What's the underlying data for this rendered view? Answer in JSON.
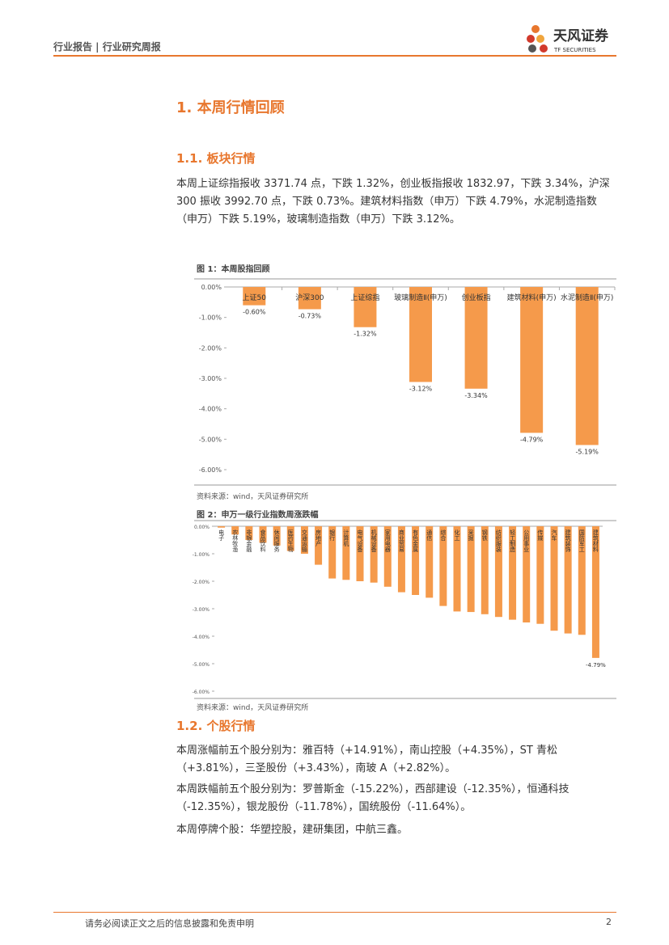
{
  "header": {
    "left": "行业报告 | 行业研究周报",
    "logo_cn": "天风证券",
    "logo_en": "TF SECURITIES"
  },
  "heading": "1. 本周行情回顾",
  "sub1": {
    "title": "1.1. 板块行情",
    "text": "本周上证综指报收 3371.74 点，下跌 1.32%，创业板指报收 1832.97，下跌 3.34%，沪深 300 振收 3992.70 点，下跌 0.73%。建筑材料指数（申万）下跌 4.79%，水泥制造指数（申万）下跌 5.19%，玻璃制造指数（申万）下跌 3.12%。"
  },
  "chart_data": [
    {
      "type": "bar",
      "title": "图 1：本周股指回顾",
      "source": "资料来源：wind，天风证券研究所",
      "color": "#f59a4b",
      "categories": [
        "上证50",
        "沪深300",
        "上证综指",
        "玻璃制造Ⅱ(申万)",
        "创业板指",
        "建筑材料(申万)",
        "水泥制造Ⅱ(申万)"
      ],
      "values": [
        -0.6,
        -0.73,
        -1.32,
        -3.12,
        -3.34,
        -4.79,
        -5.19
      ],
      "value_labels": [
        "-0.60%",
        "-0.73%",
        "-1.32%",
        "-3.12%",
        "-3.34%",
        "-4.79%",
        "-5.19%"
      ],
      "ylim": [
        -6,
        0
      ],
      "yticks": [
        {
          "value": 0,
          "label": "0.00%"
        },
        {
          "value": -1,
          "label": "-1.00%"
        },
        {
          "value": -2,
          "label": "-2.00%"
        },
        {
          "value": -3,
          "label": "-3.00%"
        },
        {
          "value": -4,
          "label": "-4.00%"
        },
        {
          "value": -5,
          "label": "-5.00%"
        },
        {
          "value": -6,
          "label": "-6.00%"
        }
      ]
    },
    {
      "type": "bar",
      "title": "图 2：申万一级行业指数周涨跌幅",
      "source": "资料来源：wind，天风证券研究所",
      "color": "#f59a4b",
      "categories": [
        "电子",
        "农林牧渔",
        "非银金融",
        "食品饮料",
        "休闲服务",
        "医药生物",
        "交通运输",
        "房地产",
        "银行",
        "计算机",
        "电气设备",
        "机械设备",
        "家用电器",
        "商业贸易",
        "有色金属",
        "通信",
        "综合",
        "化工",
        "采掘",
        "钢铁",
        "纺织服装",
        "轻工制造",
        "公用事业",
        "传媒",
        "汽车",
        "建筑装饰",
        "国防军工",
        "建筑材料"
      ],
      "values": [
        -0.05,
        -0.3,
        -0.5,
        -0.6,
        -0.7,
        -0.9,
        -1.0,
        -1.4,
        -1.9,
        -1.95,
        -2.0,
        -2.05,
        -2.2,
        -2.4,
        -2.5,
        -2.6,
        -2.9,
        -3.1,
        -3.12,
        -3.2,
        -3.3,
        -3.4,
        -3.5,
        -3.55,
        -3.8,
        -3.9,
        -3.95,
        -4.79
      ],
      "value_labels": [
        null,
        null,
        null,
        null,
        null,
        null,
        null,
        null,
        null,
        null,
        null,
        null,
        null,
        null,
        null,
        null,
        null,
        null,
        null,
        null,
        null,
        null,
        null,
        null,
        null,
        null,
        null,
        "-4.79%"
      ],
      "ylim": [
        -6,
        0
      ],
      "yticks": [
        {
          "value": 0,
          "label": "0.00%"
        },
        {
          "value": -1,
          "label": "-1.00%"
        },
        {
          "value": -2,
          "label": "-2.00%"
        },
        {
          "value": -3,
          "label": "-3.00%"
        },
        {
          "value": -4,
          "label": "-4.00%"
        },
        {
          "value": -5,
          "label": "-5.00%"
        },
        {
          "value": -6,
          "label": "-6.00%"
        }
      ]
    }
  ],
  "sub2": {
    "title": "1.2. 个股行情",
    "paragraphs": [
      "本周涨幅前五个股分别为：雅百特（+14.91%），南山控股（+4.35%），ST 青松（+3.81%），三圣股份（+3.43%），南玻 A（+2.82%）。",
      "本周跌幅前五个股分别为：罗普斯金（-15.22%），西部建设（-12.35%），恒通科技（-12.35%），银龙股份（-11.78%），国统股份（-11.64%）。",
      "本周停牌个股：华塑控股，建研集团，中航三鑫。"
    ]
  },
  "footer": {
    "text": "请务必阅读正文之后的信息披露和免责申明",
    "page": "2"
  }
}
